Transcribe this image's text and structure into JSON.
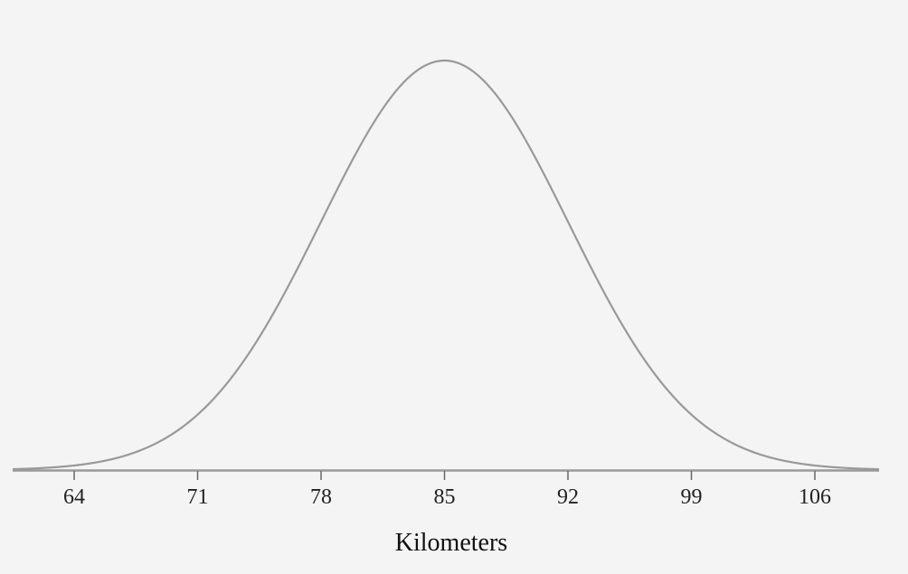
{
  "chart_data": {
    "type": "line",
    "title": "",
    "xlabel": "Kilometers",
    "ylabel": "",
    "distribution": "normal",
    "mean": 85,
    "std_dev": 7,
    "xlim": [
      59.5,
      110.5
    ],
    "x_ticks": [
      64,
      71,
      78,
      85,
      92,
      99,
      106
    ],
    "x_tick_labels": [
      "64",
      "71",
      "78",
      "85",
      "92",
      "99",
      "106"
    ],
    "grid": false,
    "legend": "none",
    "series": [
      {
        "x": [
          60,
          62,
          64,
          66,
          68,
          70,
          71,
          72,
          74,
          76,
          78,
          80,
          82,
          84,
          85,
          86,
          88,
          90,
          92,
          94,
          96,
          98,
          99,
          100,
          102,
          104,
          106,
          108,
          110
        ],
        "y": [
          0.0009,
          0.0026,
          0.0063,
          0.0142,
          0.0289,
          0.0534,
          0.0714,
          0.0892,
          0.136,
          0.1892,
          0.242,
          0.2904,
          0.3311,
          0.3575,
          0.3989,
          0.3575,
          0.3311,
          0.2904,
          0.242,
          0.1892,
          0.136,
          0.0892,
          0.0714,
          0.0534,
          0.0289,
          0.0142,
          0.0063,
          0.0026,
          0.0009
        ]
      }
    ],
    "colors": {
      "background": "#f4f4f4",
      "curve": "#999999",
      "axis": "#999999",
      "tick": "#666666",
      "text": "#222222"
    }
  }
}
